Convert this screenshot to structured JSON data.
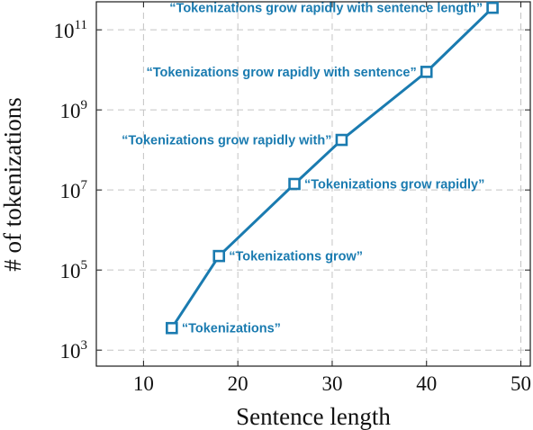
{
  "chart_data": {
    "type": "line",
    "xlabel": "Sentence length",
    "ylabel": "# of tokenizations",
    "xlim": [
      5,
      51
    ],
    "ylim_log10": [
      2.6,
      11.7
    ],
    "yscale": "log",
    "grid": true,
    "grid_style": "dashed",
    "series_color": "#1a7bb0",
    "marker": "open-square",
    "x_ticks": [
      10,
      20,
      30,
      40,
      50
    ],
    "y_ticks": [
      {
        "base": "10",
        "exp": "3",
        "log10": 3
      },
      {
        "base": "10",
        "exp": "5",
        "log10": 5
      },
      {
        "base": "10",
        "exp": "7",
        "log10": 7
      },
      {
        "base": "10",
        "exp": "9",
        "log10": 9
      },
      {
        "base": "10",
        "exp": "11",
        "log10": 11
      }
    ],
    "points": [
      {
        "x": 13,
        "y_log10": 3.55,
        "label": "“Tokenizations”",
        "label_side": "right"
      },
      {
        "x": 18,
        "y_log10": 5.35,
        "label": "“Tokenizations grow”",
        "label_side": "right"
      },
      {
        "x": 26,
        "y_log10": 7.15,
        "label": "“Tokenizations grow rapidly”",
        "label_side": "right"
      },
      {
        "x": 31,
        "y_log10": 8.25,
        "label": "“Tokenizations grow rapidly with”",
        "label_side": "left"
      },
      {
        "x": 40,
        "y_log10": 9.95,
        "label": "“Tokenizations grow rapidly with sentence”",
        "label_side": "left"
      },
      {
        "x": 47,
        "y_log10": 11.55,
        "label": "“Tokenizations grow rapidly with sentence length”",
        "label_side": "left"
      }
    ]
  }
}
